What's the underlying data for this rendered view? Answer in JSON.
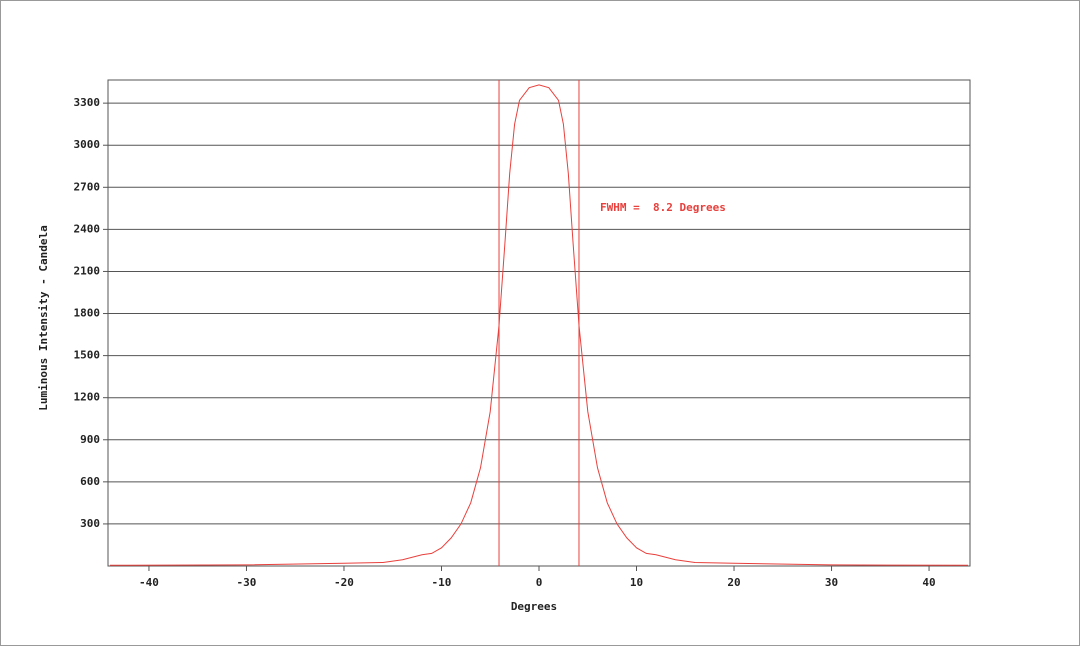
{
  "chart_data": {
    "type": "line",
    "x_label": "Degrees",
    "y_label": "Luminous Intensity - Candela",
    "annotation": "FWHM =  8.2 Degrees",
    "x": [
      -44,
      -30,
      -20,
      -16,
      -14,
      -12,
      -11,
      -10,
      -9,
      -8,
      -7,
      -6,
      -5,
      -4.1,
      -3.5,
      -3,
      -2.5,
      -2,
      -1,
      0,
      1,
      2,
      2.5,
      3,
      3.5,
      4.1,
      5,
      6,
      7,
      8,
      9,
      10,
      11,
      12,
      14,
      16,
      20,
      30,
      44
    ],
    "series": [
      {
        "color": "#e8403c",
        "values": [
          5,
          8,
          20,
          25,
          45,
          80,
          90,
          130,
          200,
          300,
          450,
          700,
          1100,
          1715,
          2300,
          2800,
          3150,
          3320,
          3410,
          3430,
          3410,
          3320,
          3150,
          2800,
          2300,
          1715,
          1100,
          700,
          450,
          300,
          200,
          130,
          90,
          80,
          45,
          25,
          20,
          8,
          5
        ]
      }
    ],
    "fwhm_lines": [
      -4.1,
      4.1
    ],
    "xlim": [
      -44.2,
      44.2
    ],
    "ylim": [
      0,
      3465
    ],
    "xticks": [
      -40,
      -30,
      -20,
      -10,
      0,
      10,
      20,
      30,
      40
    ],
    "yticks": [
      300,
      600,
      900,
      1200,
      1500,
      1800,
      2100,
      2400,
      2700,
      3000,
      3300
    ],
    "grid": true
  }
}
